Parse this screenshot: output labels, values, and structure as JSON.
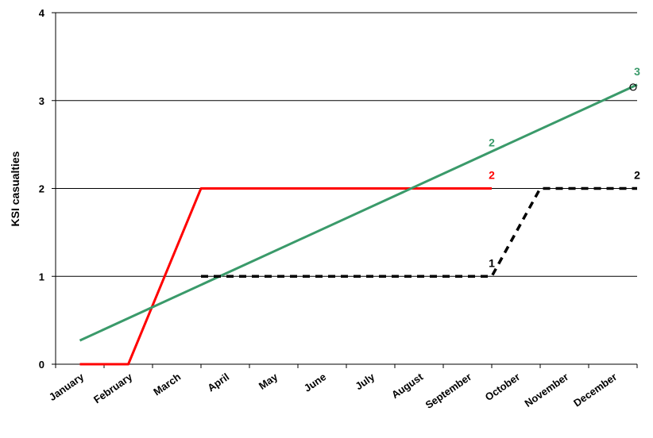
{
  "chart_data": {
    "type": "line",
    "ylabel": "KSI casualties",
    "xlabel": "",
    "title": "",
    "ylim": [
      0,
      4
    ],
    "yticks": [
      "0",
      "1",
      "2",
      "3",
      "4"
    ],
    "categories": [
      "January",
      "February",
      "March",
      "April",
      "May",
      "June",
      "July",
      "August",
      "September",
      "October",
      "November",
      "December"
    ],
    "grid": true,
    "series": [
      {
        "color": "#ff0000",
        "style": "solid",
        "x": [
          1,
          2,
          3.5,
          9.5
        ],
        "y": [
          0,
          0,
          2,
          2
        ],
        "label": {
          "text": "2",
          "x": 9.5,
          "y": 2
        }
      },
      {
        "color": "#3a9a6a",
        "style": "solid",
        "x": [
          1,
          12.5
        ],
        "y": [
          0.27,
          3.18
        ],
        "labels": [
          {
            "text": "2",
            "x": 9.5,
            "y": 2.37
          },
          {
            "text": "3",
            "x": 12.5,
            "y": 3.18
          }
        ]
      },
      {
        "color": "#000000",
        "style": "dashed",
        "x": [
          3.5,
          9.5,
          10.5,
          12.5
        ],
        "y": [
          1,
          1,
          2,
          2
        ],
        "labels": [
          {
            "text": "1",
            "x": 9.5,
            "y": 1
          },
          {
            "text": "2",
            "x": 12.5,
            "y": 2
          }
        ]
      }
    ]
  }
}
